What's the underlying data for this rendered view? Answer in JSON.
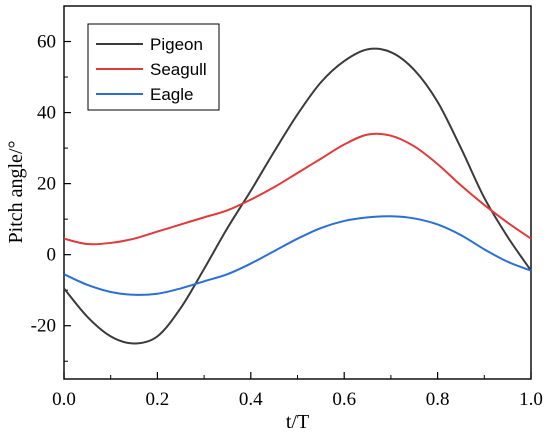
{
  "chart_data": {
    "type": "line",
    "xlabel": "t/T",
    "ylabel": "Pitch angle/°",
    "xlim": [
      0.0,
      1.0
    ],
    "ylim": [
      -35,
      70
    ],
    "xticks": [
      0.0,
      0.2,
      0.4,
      0.6,
      0.8,
      1.0
    ],
    "xtick_labels": [
      "0.0",
      "0.2",
      "0.4",
      "0.6",
      "0.8",
      "1.0"
    ],
    "yticks": [
      -20,
      0,
      20,
      40,
      60
    ],
    "ytick_labels": [
      "-20",
      "0",
      "20",
      "40",
      "60"
    ],
    "grid": false,
    "legend_position": "top-left",
    "series": [
      {
        "name": "Pigeon",
        "color": "#3a3a3a",
        "x": [
          0.0,
          0.05,
          0.1,
          0.15,
          0.2,
          0.25,
          0.3,
          0.35,
          0.4,
          0.45,
          0.5,
          0.55,
          0.6,
          0.65,
          0.7,
          0.75,
          0.8,
          0.85,
          0.9,
          0.95,
          1.0
        ],
        "y": [
          -9.5,
          -17.5,
          -23,
          -25,
          -23,
          -15,
          -4,
          7.5,
          18,
          29,
          39.5,
          48.5,
          54.5,
          57.8,
          57,
          52,
          43,
          30,
          16,
          5,
          -4.5
        ]
      },
      {
        "name": "Seagull",
        "color": "#e03a3a",
        "x": [
          0.0,
          0.05,
          0.1,
          0.15,
          0.2,
          0.25,
          0.3,
          0.35,
          0.4,
          0.45,
          0.5,
          0.55,
          0.6,
          0.65,
          0.7,
          0.75,
          0.8,
          0.85,
          0.9,
          0.95,
          1.0
        ],
        "y": [
          4.5,
          3,
          3.3,
          4.5,
          6.5,
          8.5,
          10.5,
          12.5,
          15.5,
          19,
          23,
          27,
          31,
          33.8,
          33.5,
          30.5,
          25.5,
          19.5,
          14,
          9,
          4.5
        ]
      },
      {
        "name": "Eagle",
        "color": "#2a6fd6",
        "x": [
          0.0,
          0.05,
          0.1,
          0.15,
          0.2,
          0.25,
          0.3,
          0.35,
          0.4,
          0.45,
          0.5,
          0.55,
          0.6,
          0.65,
          0.7,
          0.75,
          0.8,
          0.85,
          0.9,
          0.95,
          1.0
        ],
        "y": [
          -5.5,
          -8.5,
          -10.5,
          -11.3,
          -11,
          -9.5,
          -7.5,
          -5.5,
          -2.5,
          1,
          4.5,
          7.5,
          9.5,
          10.5,
          10.8,
          10.2,
          8.5,
          5.5,
          1.5,
          -2,
          -4.5
        ]
      }
    ]
  }
}
